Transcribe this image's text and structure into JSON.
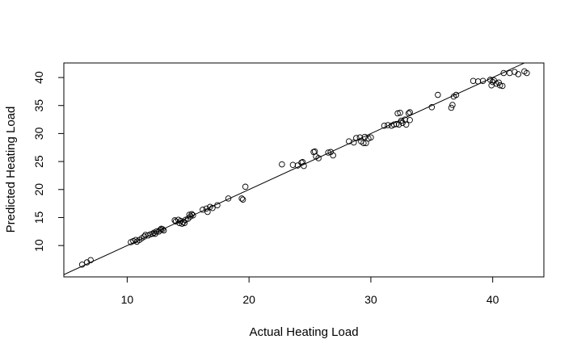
{
  "chart_data": {
    "type": "scatter",
    "title": "",
    "xlabel": "Actual Heating Load",
    "ylabel": "Predicted Heating Load",
    "xlim": [
      4.8,
      44.2
    ],
    "ylim": [
      4.4,
      42.6
    ],
    "x_ticks": [
      10,
      20,
      30,
      40
    ],
    "y_ticks": [
      10,
      15,
      20,
      25,
      30,
      35,
      40
    ],
    "grid": false,
    "legend": "none",
    "marker": "open-circle",
    "reference_line": {
      "type": "identity",
      "intercept": 0,
      "slope": 1
    },
    "points": [
      [
        6.3,
        6.6
      ],
      [
        6.7,
        7.0
      ],
      [
        7.0,
        7.4
      ],
      [
        10.3,
        10.6
      ],
      [
        10.5,
        10.8
      ],
      [
        10.7,
        11.0
      ],
      [
        10.8,
        10.7
      ],
      [
        11.0,
        11.0
      ],
      [
        11.2,
        11.3
      ],
      [
        11.4,
        11.6
      ],
      [
        11.5,
        11.9
      ],
      [
        11.7,
        11.8
      ],
      [
        11.9,
        12.0
      ],
      [
        12.1,
        12.1
      ],
      [
        12.2,
        12.3
      ],
      [
        12.3,
        12.1
      ],
      [
        12.4,
        12.5
      ],
      [
        12.6,
        12.5
      ],
      [
        12.7,
        12.8
      ],
      [
        12.8,
        13.0
      ],
      [
        12.9,
        12.9
      ],
      [
        13.0,
        12.7
      ],
      [
        13.9,
        14.5
      ],
      [
        14.0,
        14.3
      ],
      [
        14.2,
        14.6
      ],
      [
        14.3,
        14.0
      ],
      [
        14.4,
        14.4
      ],
      [
        14.5,
        13.9
      ],
      [
        14.6,
        14.2
      ],
      [
        14.7,
        14.0
      ],
      [
        14.8,
        14.6
      ],
      [
        15.0,
        14.8
      ],
      [
        15.1,
        15.5
      ],
      [
        15.2,
        15.2
      ],
      [
        15.3,
        15.6
      ],
      [
        15.4,
        15.4
      ],
      [
        16.2,
        16.4
      ],
      [
        16.5,
        16.6
      ],
      [
        16.6,
        16.0
      ],
      [
        16.8,
        16.9
      ],
      [
        17.0,
        16.7
      ],
      [
        17.4,
        17.2
      ],
      [
        18.3,
        18.4
      ],
      [
        19.4,
        18.4
      ],
      [
        19.5,
        18.2
      ],
      [
        19.7,
        20.5
      ],
      [
        22.7,
        24.5
      ],
      [
        23.6,
        24.4
      ],
      [
        24.0,
        24.3
      ],
      [
        24.3,
        24.8
      ],
      [
        24.4,
        24.9
      ],
      [
        24.5,
        24.2
      ],
      [
        25.3,
        26.7
      ],
      [
        25.4,
        26.8
      ],
      [
        25.5,
        25.9
      ],
      [
        25.7,
        25.6
      ],
      [
        26.5,
        26.6
      ],
      [
        26.7,
        26.7
      ],
      [
        26.9,
        26.1
      ],
      [
        28.2,
        28.6
      ],
      [
        28.6,
        28.4
      ],
      [
        28.8,
        29.2
      ],
      [
        29.1,
        29.3
      ],
      [
        29.2,
        28.6
      ],
      [
        29.4,
        28.3
      ],
      [
        29.5,
        29.4
      ],
      [
        29.6,
        28.3
      ],
      [
        29.8,
        29.1
      ],
      [
        30.0,
        29.3
      ],
      [
        31.1,
        31.4
      ],
      [
        31.4,
        31.5
      ],
      [
        31.7,
        31.4
      ],
      [
        31.9,
        31.6
      ],
      [
        32.1,
        31.7
      ],
      [
        32.2,
        33.6
      ],
      [
        32.3,
        31.6
      ],
      [
        32.4,
        33.7
      ],
      [
        32.5,
        32.3
      ],
      [
        32.6,
        31.9
      ],
      [
        32.8,
        32.5
      ],
      [
        32.9,
        31.6
      ],
      [
        33.1,
        33.6
      ],
      [
        33.2,
        32.4
      ],
      [
        33.2,
        33.8
      ],
      [
        35.0,
        34.7
      ],
      [
        35.5,
        36.9
      ],
      [
        36.6,
        34.6
      ],
      [
        36.7,
        35.1
      ],
      [
        36.8,
        36.6
      ],
      [
        37.0,
        36.9
      ],
      [
        38.4,
        39.4
      ],
      [
        38.8,
        39.3
      ],
      [
        39.2,
        39.4
      ],
      [
        39.8,
        39.6
      ],
      [
        39.9,
        38.6
      ],
      [
        40.0,
        39.2
      ],
      [
        40.1,
        39.5
      ],
      [
        40.3,
        38.9
      ],
      [
        40.5,
        39.1
      ],
      [
        40.6,
        38.6
      ],
      [
        40.8,
        38.5
      ],
      [
        40.9,
        40.8
      ],
      [
        41.4,
        40.8
      ],
      [
        41.8,
        41.0
      ],
      [
        42.1,
        40.6
      ],
      [
        42.6,
        41.1
      ],
      [
        42.8,
        40.8
      ]
    ]
  }
}
